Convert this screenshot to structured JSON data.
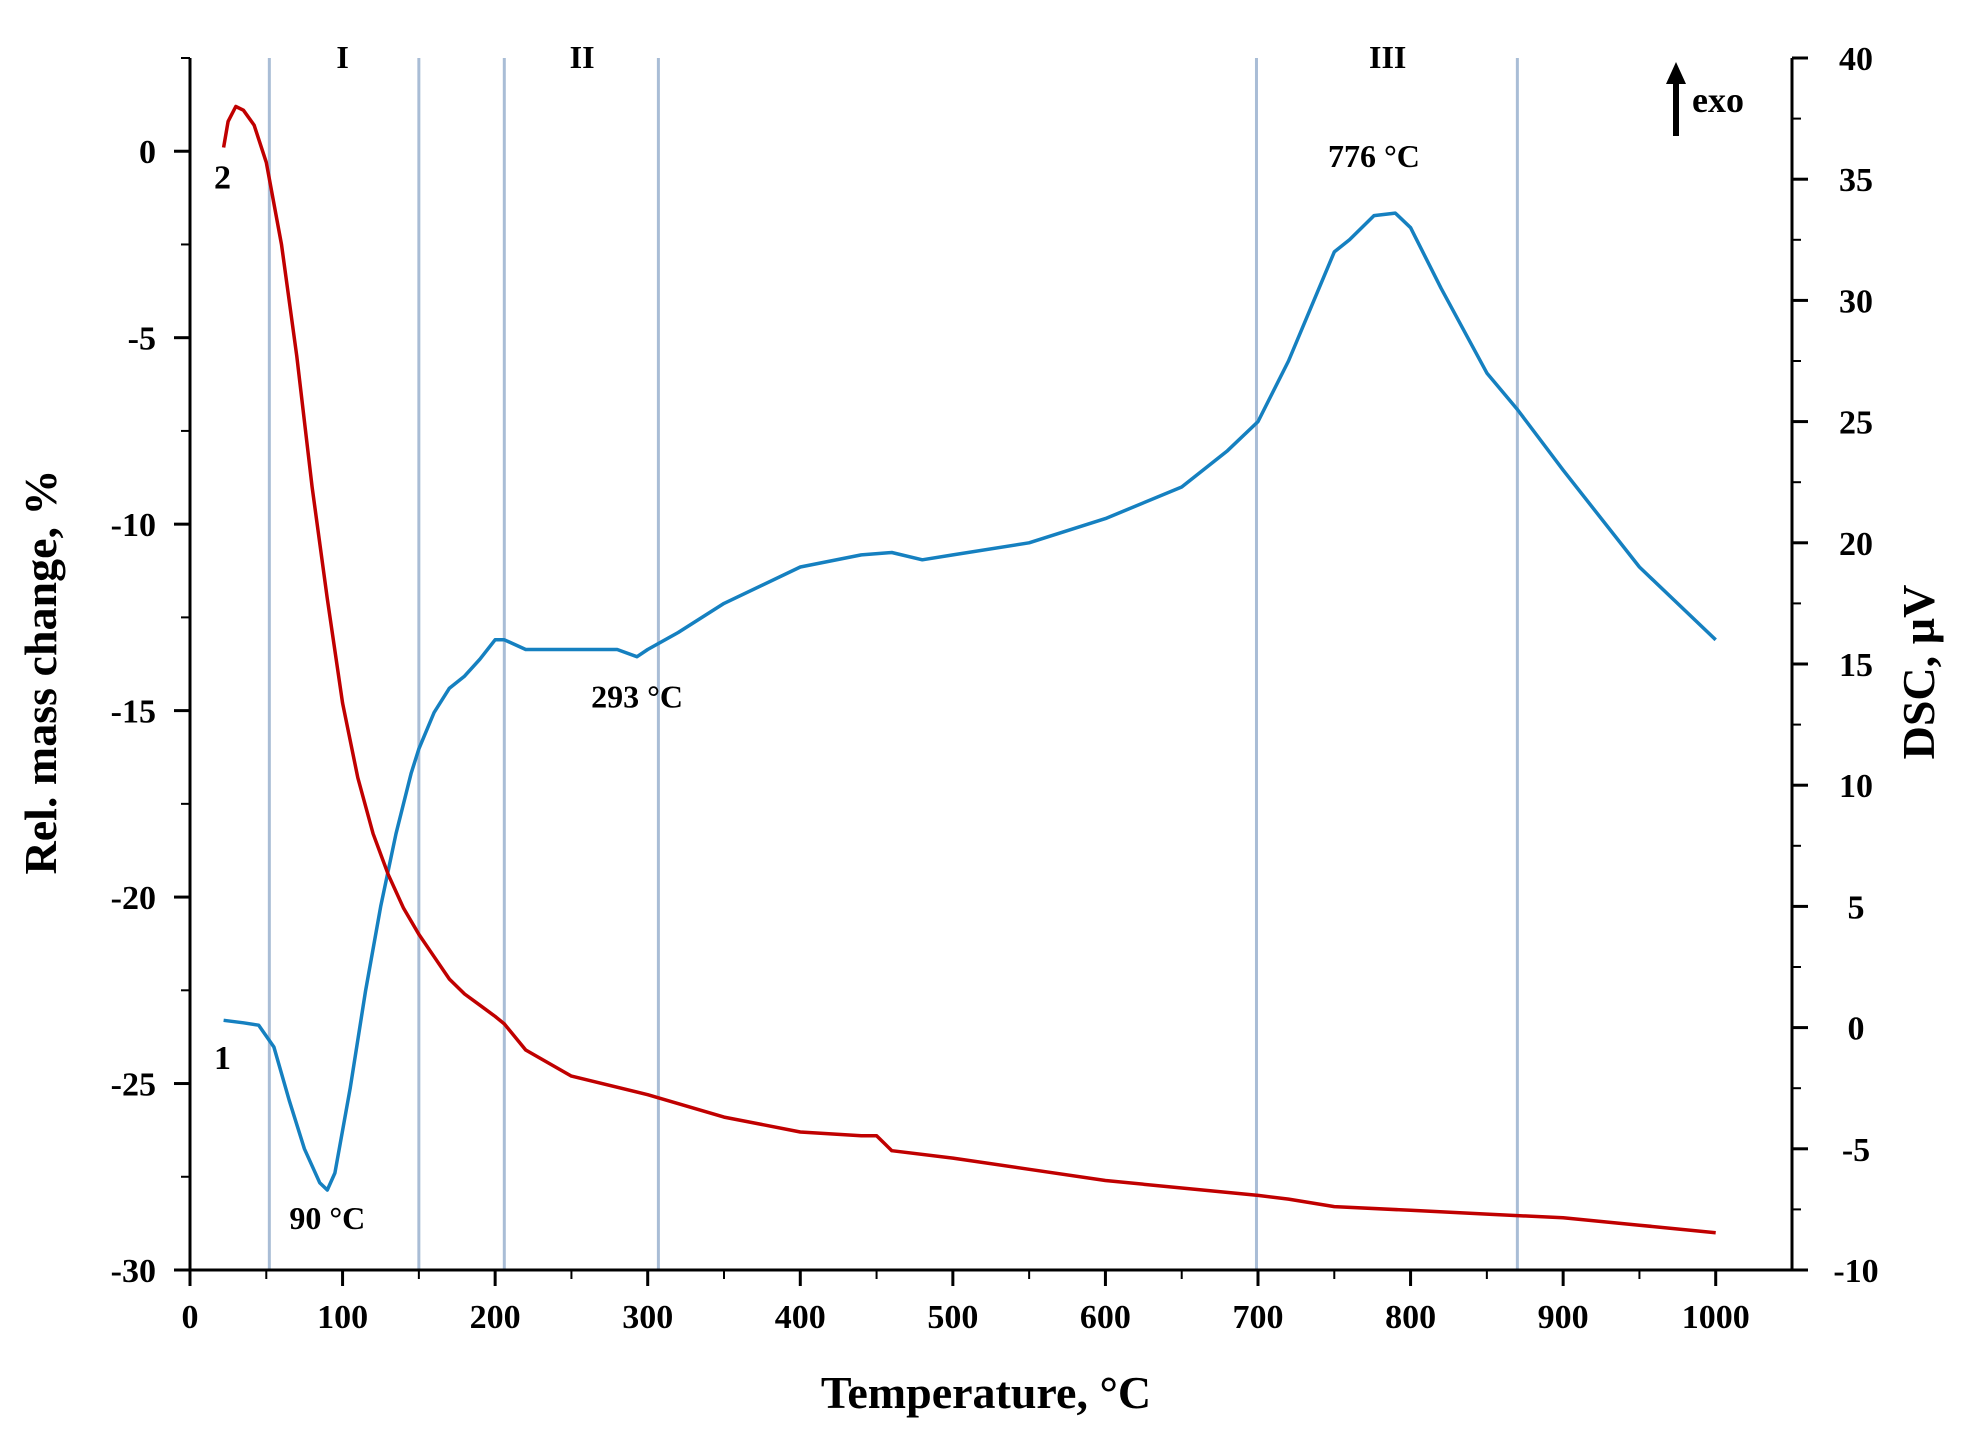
{
  "chart_data": {
    "type": "line",
    "xlabel": "Temperature, °C",
    "ylabel_left": "Rel. mass change, %",
    "ylabel_right": "DSC, µV",
    "xlim": [
      0,
      1050
    ],
    "ylim_left": [
      -30,
      2.5
    ],
    "ylim_right": [
      -10,
      40
    ],
    "x_ticks": [
      0,
      100,
      200,
      300,
      400,
      500,
      600,
      700,
      800,
      900,
      1000
    ],
    "x_tick_labels": [
      "0",
      "100",
      "200",
      "300",
      "400",
      "500",
      "600",
      "700",
      "800",
      "900",
      "1000"
    ],
    "y_left_ticks": [
      0,
      -5,
      -10,
      -15,
      -20,
      -25,
      -30
    ],
    "y_left_tick_labels": [
      "0",
      "-5",
      "-10",
      "-15",
      "-20",
      "-25",
      "-30"
    ],
    "y_right_ticks": [
      40,
      35,
      30,
      25,
      20,
      15,
      10,
      5,
      0,
      -5,
      -10
    ],
    "y_right_tick_labels": [
      "40",
      "35",
      "30",
      "25",
      "20",
      "15",
      "10",
      "5",
      "0",
      "-5",
      "-10"
    ],
    "vertical_lines": [
      52,
      150,
      206,
      307,
      699,
      870
    ],
    "regions": [
      {
        "label": "I",
        "x": 100
      },
      {
        "label": "II",
        "x": 257
      },
      {
        "label": "III",
        "x": 785
      }
    ],
    "exo_label": "exo",
    "annotations": [
      {
        "text": "90 °C",
        "x": 90,
        "axis": "right",
        "y": -8.3
      },
      {
        "text": "293 °C",
        "x": 293,
        "axis": "right",
        "y": 13.2
      },
      {
        "text": "776 °C",
        "x": 776,
        "axis": "right",
        "y": 35.5
      }
    ],
    "series": [
      {
        "name": "1",
        "label": "1",
        "axis": "right",
        "color": "#1580c0",
        "label_x": 23,
        "label_y": -1.7,
        "x": [
          22,
          35,
          45,
          55,
          65,
          75,
          85,
          90,
          95,
          105,
          115,
          125,
          135,
          145,
          150,
          160,
          170,
          180,
          190,
          200,
          206,
          220,
          250,
          280,
          293,
          300,
          320,
          350,
          400,
          440,
          460,
          480,
          500,
          550,
          600,
          650,
          680,
          700,
          720,
          740,
          750,
          760,
          776,
          790,
          800,
          820,
          850,
          870,
          900,
          950,
          1000
        ],
        "values": [
          0.3,
          0.2,
          0.1,
          -0.8,
          -3.0,
          -5.0,
          -6.4,
          -6.7,
          -6.0,
          -2.5,
          1.5,
          5.0,
          8.0,
          10.5,
          11.5,
          13.0,
          14.0,
          14.5,
          15.2,
          16.0,
          16.0,
          15.6,
          15.6,
          15.6,
          15.3,
          15.6,
          16.3,
          17.5,
          19.0,
          19.5,
          19.6,
          19.3,
          19.5,
          20.0,
          21.0,
          22.3,
          23.8,
          25.0,
          27.5,
          30.5,
          32.0,
          32.5,
          33.5,
          33.6,
          33.0,
          30.5,
          27.0,
          25.5,
          23.0,
          19.0,
          16.0
        ]
      },
      {
        "name": "2",
        "label": "2",
        "axis": "left",
        "color": "#c00000",
        "label_x": 23,
        "label_y": -1.0,
        "x": [
          22,
          25,
          30,
          35,
          42,
          50,
          60,
          70,
          80,
          90,
          100,
          110,
          120,
          130,
          140,
          150,
          160,
          170,
          180,
          190,
          200,
          206,
          220,
          250,
          300,
          350,
          400,
          440,
          450,
          460,
          500,
          550,
          600,
          650,
          700,
          720,
          750,
          800,
          850,
          900,
          950,
          1000
        ],
        "values": [
          0.1,
          0.8,
          1.2,
          1.1,
          0.7,
          -0.3,
          -2.5,
          -5.5,
          -9.0,
          -12.0,
          -14.8,
          -16.8,
          -18.3,
          -19.4,
          -20.3,
          -21.0,
          -21.6,
          -22.2,
          -22.6,
          -22.9,
          -23.2,
          -23.4,
          -24.1,
          -24.8,
          -25.3,
          -25.9,
          -26.3,
          -26.4,
          -26.4,
          -26.8,
          -27.0,
          -27.3,
          -27.6,
          -27.8,
          -28.0,
          -28.1,
          -28.3,
          -28.4,
          -28.5,
          -28.6,
          -28.8,
          -29.0
        ]
      }
    ]
  }
}
